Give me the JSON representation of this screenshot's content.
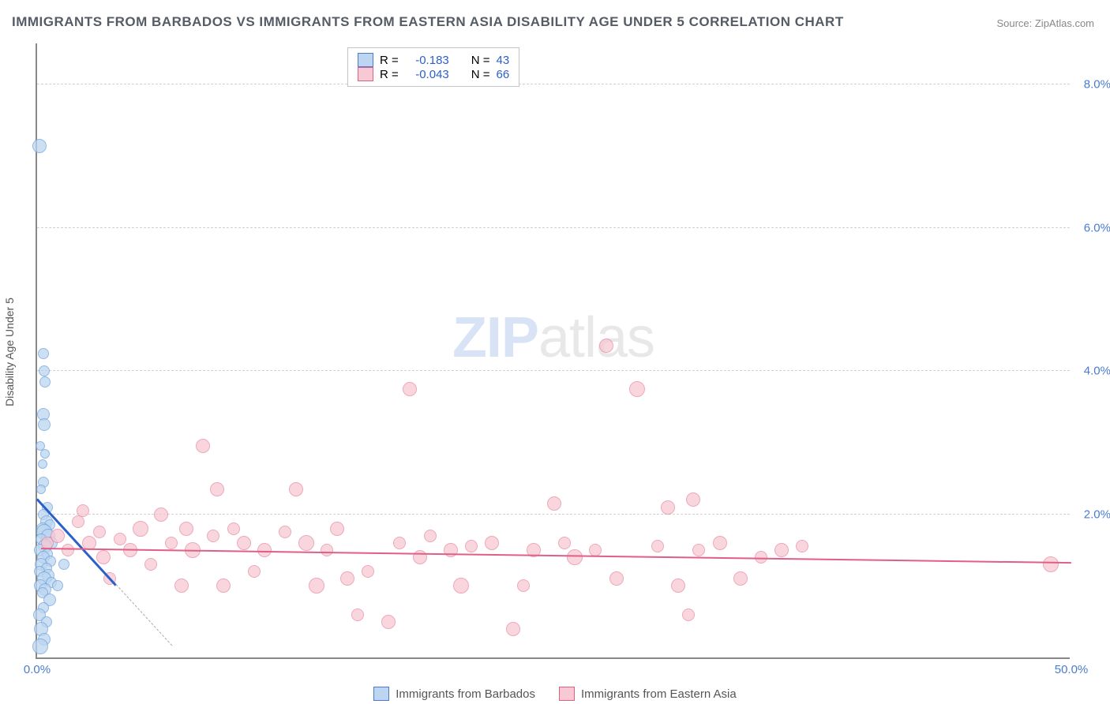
{
  "title": "IMMIGRANTS FROM BARBADOS VS IMMIGRANTS FROM EASTERN ASIA DISABILITY AGE UNDER 5 CORRELATION CHART",
  "source": "Source: ZipAtlas.com",
  "watermark_a": "ZIP",
  "watermark_b": "atlas",
  "ylabel": "Disability Age Under 5",
  "chart": {
    "type": "scatter",
    "xlim": [
      0,
      50
    ],
    "ylim": [
      0,
      8.6
    ],
    "yticks": [
      2.0,
      4.0,
      6.0,
      8.0
    ],
    "ytick_labels": [
      "2.0%",
      "4.0%",
      "6.0%",
      "8.0%"
    ],
    "xticks": [
      0,
      50
    ],
    "xtick_labels": [
      "0.0%",
      "50.0%"
    ],
    "grid_color": "#d0d0d0",
    "background_color": "#ffffff",
    "axis_color": "#888888",
    "tick_label_color": "#4a7bd0",
    "tick_fontsize": 15
  },
  "series": [
    {
      "name": "Immigrants from Barbados",
      "fill": "#bcd5f0",
      "stroke": "#6fa4de",
      "legend_fill": "#bcd5f0",
      "legend_stroke": "#4a7bd0",
      "R": "-0.183",
      "N": "43",
      "trend": {
        "x1": 0,
        "y1": 2.25,
        "x2": 3.8,
        "y2": 1.05,
        "color": "#2b5fc9",
        "width": 2.5,
        "dash_extend_to_x": 6.5
      },
      "points": [
        {
          "x": 0.1,
          "y": 7.15,
          "r": 9
        },
        {
          "x": 0.3,
          "y": 4.25,
          "r": 7
        },
        {
          "x": 0.35,
          "y": 4.0,
          "r": 7
        },
        {
          "x": 0.4,
          "y": 3.85,
          "r": 7
        },
        {
          "x": 0.3,
          "y": 3.4,
          "r": 8
        },
        {
          "x": 0.35,
          "y": 3.25,
          "r": 8
        },
        {
          "x": 0.15,
          "y": 2.95,
          "r": 6
        },
        {
          "x": 0.4,
          "y": 2.85,
          "r": 6
        },
        {
          "x": 0.25,
          "y": 2.7,
          "r": 6
        },
        {
          "x": 0.3,
          "y": 2.45,
          "r": 7
        },
        {
          "x": 0.2,
          "y": 2.35,
          "r": 6
        },
        {
          "x": 0.5,
          "y": 2.1,
          "r": 7
        },
        {
          "x": 0.3,
          "y": 2.0,
          "r": 7
        },
        {
          "x": 0.45,
          "y": 1.9,
          "r": 8
        },
        {
          "x": 0.6,
          "y": 1.85,
          "r": 7
        },
        {
          "x": 0.25,
          "y": 1.8,
          "r": 8
        },
        {
          "x": 0.35,
          "y": 1.75,
          "r": 10
        },
        {
          "x": 0.55,
          "y": 1.7,
          "r": 9
        },
        {
          "x": 0.2,
          "y": 1.65,
          "r": 7
        },
        {
          "x": 0.7,
          "y": 1.6,
          "r": 8
        },
        {
          "x": 0.4,
          "y": 1.55,
          "r": 9
        },
        {
          "x": 0.15,
          "y": 1.5,
          "r": 8
        },
        {
          "x": 0.5,
          "y": 1.45,
          "r": 7
        },
        {
          "x": 0.3,
          "y": 1.4,
          "r": 8
        },
        {
          "x": 0.65,
          "y": 1.35,
          "r": 7
        },
        {
          "x": 0.2,
          "y": 1.3,
          "r": 8
        },
        {
          "x": 0.45,
          "y": 1.25,
          "r": 7
        },
        {
          "x": 0.1,
          "y": 1.2,
          "r": 7
        },
        {
          "x": 0.55,
          "y": 1.15,
          "r": 8
        },
        {
          "x": 0.35,
          "y": 1.1,
          "r": 9
        },
        {
          "x": 0.7,
          "y": 1.05,
          "r": 7
        },
        {
          "x": 0.15,
          "y": 1.0,
          "r": 8
        },
        {
          "x": 1.0,
          "y": 1.0,
          "r": 7
        },
        {
          "x": 0.4,
          "y": 0.95,
          "r": 8
        },
        {
          "x": 0.25,
          "y": 0.9,
          "r": 7
        },
        {
          "x": 1.3,
          "y": 1.3,
          "r": 7
        },
        {
          "x": 0.6,
          "y": 0.8,
          "r": 8
        },
        {
          "x": 0.3,
          "y": 0.7,
          "r": 7
        },
        {
          "x": 0.1,
          "y": 0.6,
          "r": 8
        },
        {
          "x": 0.45,
          "y": 0.5,
          "r": 7
        },
        {
          "x": 0.2,
          "y": 0.4,
          "r": 9
        },
        {
          "x": 0.35,
          "y": 0.25,
          "r": 8
        },
        {
          "x": 0.15,
          "y": 0.15,
          "r": 10
        }
      ]
    },
    {
      "name": "Immigrants from Eastern Asia",
      "fill": "#f7c9d4",
      "stroke": "#e88ba4",
      "legend_fill": "#f7c9d4",
      "legend_stroke": "#e05f87",
      "R": "-0.043",
      "N": "66",
      "trend": {
        "x1": 0.2,
        "y1": 1.55,
        "x2": 50,
        "y2": 1.35,
        "color": "#e05f87",
        "width": 2
      },
      "points": [
        {
          "x": 0.5,
          "y": 1.6,
          "r": 8
        },
        {
          "x": 1.0,
          "y": 1.7,
          "r": 9
        },
        {
          "x": 1.5,
          "y": 1.5,
          "r": 8
        },
        {
          "x": 2.0,
          "y": 1.9,
          "r": 8
        },
        {
          "x": 2.2,
          "y": 2.05,
          "r": 8
        },
        {
          "x": 2.5,
          "y": 1.6,
          "r": 9
        },
        {
          "x": 3.0,
          "y": 1.75,
          "r": 8
        },
        {
          "x": 3.2,
          "y": 1.4,
          "r": 9
        },
        {
          "x": 3.5,
          "y": 1.1,
          "r": 8
        },
        {
          "x": 4.0,
          "y": 1.65,
          "r": 8
        },
        {
          "x": 4.5,
          "y": 1.5,
          "r": 9
        },
        {
          "x": 5.0,
          "y": 1.8,
          "r": 10
        },
        {
          "x": 5.5,
          "y": 1.3,
          "r": 8
        },
        {
          "x": 6.0,
          "y": 2.0,
          "r": 9
        },
        {
          "x": 6.5,
          "y": 1.6,
          "r": 8
        },
        {
          "x": 7.0,
          "y": 1.0,
          "r": 9
        },
        {
          "x": 7.2,
          "y": 1.8,
          "r": 9
        },
        {
          "x": 7.5,
          "y": 1.5,
          "r": 10
        },
        {
          "x": 8.0,
          "y": 2.95,
          "r": 9
        },
        {
          "x": 8.5,
          "y": 1.7,
          "r": 8
        },
        {
          "x": 8.7,
          "y": 2.35,
          "r": 9
        },
        {
          "x": 9.0,
          "y": 1.0,
          "r": 9
        },
        {
          "x": 9.5,
          "y": 1.8,
          "r": 8
        },
        {
          "x": 10.0,
          "y": 1.6,
          "r": 9
        },
        {
          "x": 10.5,
          "y": 1.2,
          "r": 8
        },
        {
          "x": 11.0,
          "y": 1.5,
          "r": 9
        },
        {
          "x": 12.0,
          "y": 1.75,
          "r": 8
        },
        {
          "x": 12.5,
          "y": 2.35,
          "r": 9
        },
        {
          "x": 13.0,
          "y": 1.6,
          "r": 10
        },
        {
          "x": 13.5,
          "y": 1.0,
          "r": 10
        },
        {
          "x": 14.0,
          "y": 1.5,
          "r": 8
        },
        {
          "x": 14.5,
          "y": 1.8,
          "r": 9
        },
        {
          "x": 15.0,
          "y": 1.1,
          "r": 9
        },
        {
          "x": 15.5,
          "y": 0.6,
          "r": 8
        },
        {
          "x": 16.0,
          "y": 1.2,
          "r": 8
        },
        {
          "x": 17.0,
          "y": 0.5,
          "r": 9
        },
        {
          "x": 17.5,
          "y": 1.6,
          "r": 8
        },
        {
          "x": 18.0,
          "y": 3.75,
          "r": 9
        },
        {
          "x": 18.5,
          "y": 1.4,
          "r": 9
        },
        {
          "x": 19.0,
          "y": 1.7,
          "r": 8
        },
        {
          "x": 20.0,
          "y": 1.5,
          "r": 9
        },
        {
          "x": 20.5,
          "y": 1.0,
          "r": 10
        },
        {
          "x": 21.0,
          "y": 1.55,
          "r": 8
        },
        {
          "x": 22.0,
          "y": 1.6,
          "r": 9
        },
        {
          "x": 23.0,
          "y": 0.4,
          "r": 9
        },
        {
          "x": 23.5,
          "y": 1.0,
          "r": 8
        },
        {
          "x": 24.0,
          "y": 1.5,
          "r": 9
        },
        {
          "x": 25.0,
          "y": 2.15,
          "r": 9
        },
        {
          "x": 25.5,
          "y": 1.6,
          "r": 8
        },
        {
          "x": 26.0,
          "y": 1.4,
          "r": 10
        },
        {
          "x": 27.0,
          "y": 1.5,
          "r": 8
        },
        {
          "x": 27.5,
          "y": 4.35,
          "r": 9
        },
        {
          "x": 28.0,
          "y": 1.1,
          "r": 9
        },
        {
          "x": 29.0,
          "y": 3.75,
          "r": 10
        },
        {
          "x": 30.0,
          "y": 1.55,
          "r": 8
        },
        {
          "x": 30.5,
          "y": 2.1,
          "r": 9
        },
        {
          "x": 31.0,
          "y": 1.0,
          "r": 9
        },
        {
          "x": 31.5,
          "y": 0.6,
          "r": 8
        },
        {
          "x": 31.7,
          "y": 2.2,
          "r": 9
        },
        {
          "x": 32.0,
          "y": 1.5,
          "r": 8
        },
        {
          "x": 33.0,
          "y": 1.6,
          "r": 9
        },
        {
          "x": 34.0,
          "y": 1.1,
          "r": 9
        },
        {
          "x": 35.0,
          "y": 1.4,
          "r": 8
        },
        {
          "x": 36.0,
          "y": 1.5,
          "r": 9
        },
        {
          "x": 37.0,
          "y": 1.55,
          "r": 8
        },
        {
          "x": 49.0,
          "y": 1.3,
          "r": 10
        }
      ]
    }
  ],
  "legend_stats": {
    "r_label": "R =",
    "n_label": "N ="
  },
  "bottom_legend": {
    "a": "Immigrants from Barbados",
    "b": "Immigrants from Eastern Asia"
  }
}
